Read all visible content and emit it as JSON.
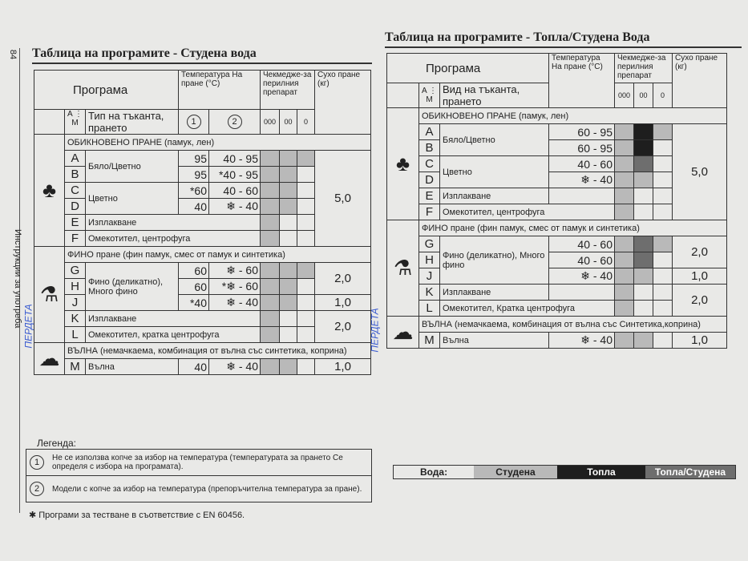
{
  "page_number": "84",
  "side_label": "Инструкции за употреба",
  "handwritten_note": "ПЕРДЕТА",
  "colors": {
    "cold": "#b9b9b9",
    "hot": "#1e1e1e",
    "mixed": "#6e6e6e"
  },
  "left": {
    "title": "Таблица на програмите - Студена вода",
    "header": {
      "program": "Програма",
      "temp": "Температура На пране (°C)",
      "drawer": "Чекмедже-за перилния препарат",
      "load": "Сухо пране (кг)",
      "range": "A ⋮ M",
      "fabric": "Тип на тъканта, прането",
      "col1": "1",
      "col2": "2",
      "drawer_icons": [
        "000",
        "00",
        "0"
      ]
    },
    "sections": [
      {
        "icon": "cotton-icon",
        "glyph": "♣",
        "title": "ОБИКНОВЕНО ПРАНЕ (памук, лен)",
        "rows": [
          {
            "letter": "A",
            "name": "Бяло/Цветно",
            "t1": "95",
            "t2": "40 - 95",
            "load": "5,0",
            "shade": [
              "cold",
              "cold",
              "cold"
            ]
          },
          {
            "letter": "B",
            "t1": "95",
            "t2": "*40 - 95",
            "shade": [
              "cold",
              "cold",
              ""
            ]
          },
          {
            "letter": "C",
            "name": "Цветно",
            "t1": "*60",
            "t2": "40 - 60",
            "shade": [
              "cold",
              "cold",
              ""
            ]
          },
          {
            "letter": "D",
            "t1": "40",
            "t2": "❄ - 40",
            "shade": [
              "cold",
              "cold",
              ""
            ]
          },
          {
            "letter": "E",
            "name": "Изплакване",
            "shade": [
              "cold",
              "",
              ""
            ]
          },
          {
            "letter": "F",
            "name": "Омекотител, центрофуга",
            "shade": [
              "cold",
              "",
              ""
            ]
          }
        ]
      },
      {
        "icon": "flask-icon",
        "glyph": "⚗",
        "title": "ФИНО пране (фин памук, смес от памук и синтетика)",
        "rows": [
          {
            "letter": "G",
            "name": "Фино (деликатно), Много фино",
            "t1": "60",
            "t2": "❄ - 60",
            "load": "2,0",
            "shade": [
              "cold",
              "cold",
              "cold"
            ]
          },
          {
            "letter": "H",
            "t1": "60",
            "t2": "*❄ - 60",
            "shade": [
              "cold",
              "cold",
              ""
            ]
          },
          {
            "letter": "J",
            "t1": "*40",
            "t2": "❄ - 40",
            "load": "1,0",
            "shade": [
              "cold",
              "cold",
              ""
            ]
          },
          {
            "letter": "K",
            "name": "Изплакване",
            "load": "2,0",
            "shade": [
              "cold",
              "",
              ""
            ]
          },
          {
            "letter": "L",
            "name": "Омекотител, кратка центрофуга",
            "shade": [
              "cold",
              "",
              ""
            ]
          }
        ]
      },
      {
        "icon": "sheep-icon",
        "glyph": "☁",
        "title": "ВЪЛНА (немачкаема, комбинация от вълна със синтетика, коприна)",
        "rows": [
          {
            "letter": "M",
            "name": "Вълна",
            "t1": "40",
            "t2": "❄ - 40",
            "load": "1,0",
            "shade": [
              "cold",
              "cold",
              ""
            ]
          }
        ]
      }
    ]
  },
  "right": {
    "title": "Таблица на програмите - Топла/Студена Вода",
    "header": {
      "program": "Програма",
      "temp": "Температура На пране (°C)",
      "drawer": "Чекмедже-за перилния препарат",
      "load": "Сухо пране (кг)",
      "range": "A ⋮ M",
      "fabric": "Вид на тъканта, прането",
      "drawer_icons": [
        "000",
        "00",
        "0"
      ]
    },
    "sections": [
      {
        "icon": "cotton-icon",
        "glyph": "♣",
        "title": "ОБИКНОВЕНО ПРАНЕ (памук, лен)",
        "rows": [
          {
            "letter": "A",
            "name": "Бяло/Цветно",
            "temp": "60 - 95",
            "load": "5,0",
            "shade": [
              "cold",
              "hot",
              "cold"
            ]
          },
          {
            "letter": "B",
            "temp": "60 - 95",
            "shade": [
              "cold",
              "hot",
              ""
            ]
          },
          {
            "letter": "C",
            "name": "Цветно",
            "temp": "40 - 60",
            "shade": [
              "cold",
              "mixed",
              ""
            ]
          },
          {
            "letter": "D",
            "temp": "❄ - 40",
            "shade": [
              "cold",
              "cold",
              ""
            ]
          },
          {
            "letter": "E",
            "name": "Изплакване",
            "temp": "",
            "shade": [
              "cold",
              "",
              ""
            ]
          },
          {
            "letter": "F",
            "name": "Омекотител, центрофуга",
            "shade": [
              "cold",
              "",
              ""
            ]
          }
        ]
      },
      {
        "icon": "flask-icon",
        "glyph": "⚗",
        "title": "ФИНО пране (фин памук, смес от памук и синтетика)",
        "rows": [
          {
            "letter": "G",
            "name": "Фино (деликатно), Много фино",
            "temp": "40 - 60",
            "load": "2,0",
            "shade": [
              "cold",
              "mixed",
              "cold"
            ]
          },
          {
            "letter": "H",
            "temp": "40 - 60",
            "shade": [
              "cold",
              "mixed",
              ""
            ]
          },
          {
            "letter": "J",
            "temp": "❄ - 40",
            "load": "1,0",
            "shade": [
              "cold",
              "cold",
              ""
            ]
          },
          {
            "letter": "K",
            "name": "Изплакване",
            "temp": "",
            "load": "2,0",
            "shade": [
              "cold",
              "",
              ""
            ]
          },
          {
            "letter": "L",
            "name": "Омекотител, Кратка центрофуга",
            "shade": [
              "cold",
              "",
              ""
            ]
          }
        ]
      },
      {
        "icon": "sheep-icon",
        "glyph": "☁",
        "title": "ВЪЛНА (немачкаема, комбинация от вълна със Синтетика,коприна)",
        "rows": [
          {
            "letter": "M",
            "name": "Вълна",
            "temp": "❄ - 40",
            "load": "1,0",
            "shade": [
              "cold",
              "cold",
              ""
            ]
          }
        ]
      }
    ]
  },
  "legend": {
    "title": "Легенда:",
    "items": [
      {
        "mark": "1",
        "text": "Не се използва копче за избор на температура (температурата за прането Се определя с избора на програмата)."
      },
      {
        "mark": "2",
        "text": "Модели с копче за избор на температура (препоръчителна температура за пране)."
      }
    ],
    "footnote": "✱ Програми за тестване в съответствие с EN 60456."
  },
  "water_legend": {
    "label": "Вода:",
    "cold": "Студена",
    "hot": "Топла",
    "mixed": "Топла/Студена"
  }
}
